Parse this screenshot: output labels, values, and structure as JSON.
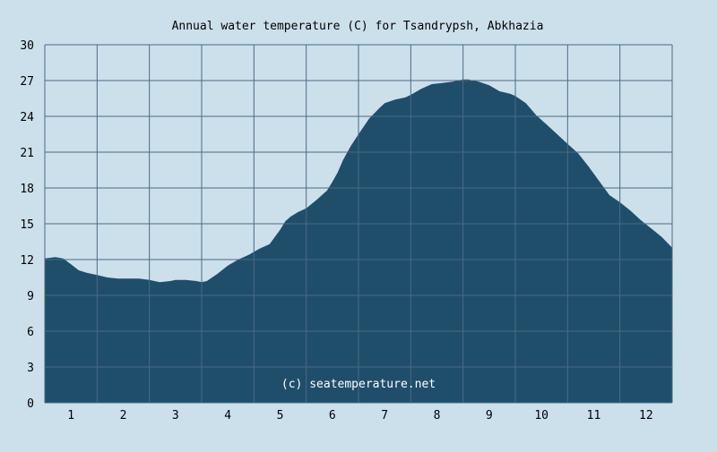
{
  "chart_data": {
    "type": "area",
    "title": "Annual water temperature (C) for Tsandrypsh, Abkhazia",
    "watermark": "(c) seatemperature.net",
    "xlabel": "",
    "ylabel": "",
    "x_tick_labels": [
      "1",
      "2",
      "3",
      "4",
      "5",
      "6",
      "7",
      "8",
      "9",
      "10",
      "11",
      "12"
    ],
    "y_tick_labels": [
      "0",
      "3",
      "6",
      "9",
      "12",
      "15",
      "18",
      "21",
      "24",
      "27",
      "30"
    ],
    "ylim": [
      0,
      30
    ],
    "xlim": [
      0,
      12
    ],
    "grid": true,
    "series": [
      {
        "x": [
          0.0,
          0.2,
          0.35,
          0.5,
          0.65,
          0.8,
          1.0,
          1.2,
          1.4,
          1.6,
          1.8,
          2.0,
          2.2,
          2.4,
          2.5,
          2.7,
          2.9,
          3.0,
          3.1,
          3.3,
          3.5,
          3.7,
          3.9,
          4.1,
          4.3,
          4.5,
          4.6,
          4.7,
          4.85,
          5.0,
          5.2,
          5.4,
          5.5,
          5.6,
          5.7,
          5.85,
          6.0,
          6.2,
          6.4,
          6.5,
          6.7,
          6.9,
          7.0,
          7.2,
          7.4,
          7.6,
          7.8,
          8.0,
          8.1,
          8.3,
          8.5,
          8.7,
          8.9,
          9.0,
          9.2,
          9.4,
          9.6,
          9.8,
          10.0,
          10.2,
          10.4,
          10.6,
          10.8,
          11.0,
          11.2,
          11.4,
          11.6,
          11.8,
          12.0
        ],
        "y": [
          12.1,
          12.2,
          12.1,
          11.6,
          11.1,
          10.9,
          10.7,
          10.5,
          10.4,
          10.4,
          10.4,
          10.3,
          10.1,
          10.2,
          10.3,
          10.3,
          10.2,
          10.1,
          10.2,
          10.8,
          11.5,
          12.0,
          12.4,
          12.9,
          13.3,
          14.5,
          15.2,
          15.6,
          16.0,
          16.3,
          17.0,
          17.8,
          18.5,
          19.3,
          20.3,
          21.5,
          22.5,
          23.8,
          24.7,
          25.1,
          25.4,
          25.6,
          25.8,
          26.3,
          26.7,
          26.8,
          26.9,
          27.1,
          27.1,
          26.9,
          26.6,
          26.1,
          25.9,
          25.7,
          25.1,
          24.1,
          23.3,
          22.5,
          21.7,
          20.9,
          19.8,
          18.6,
          17.4,
          16.8,
          16.1,
          15.3,
          14.6,
          13.9,
          13.0
        ]
      }
    ]
  }
}
